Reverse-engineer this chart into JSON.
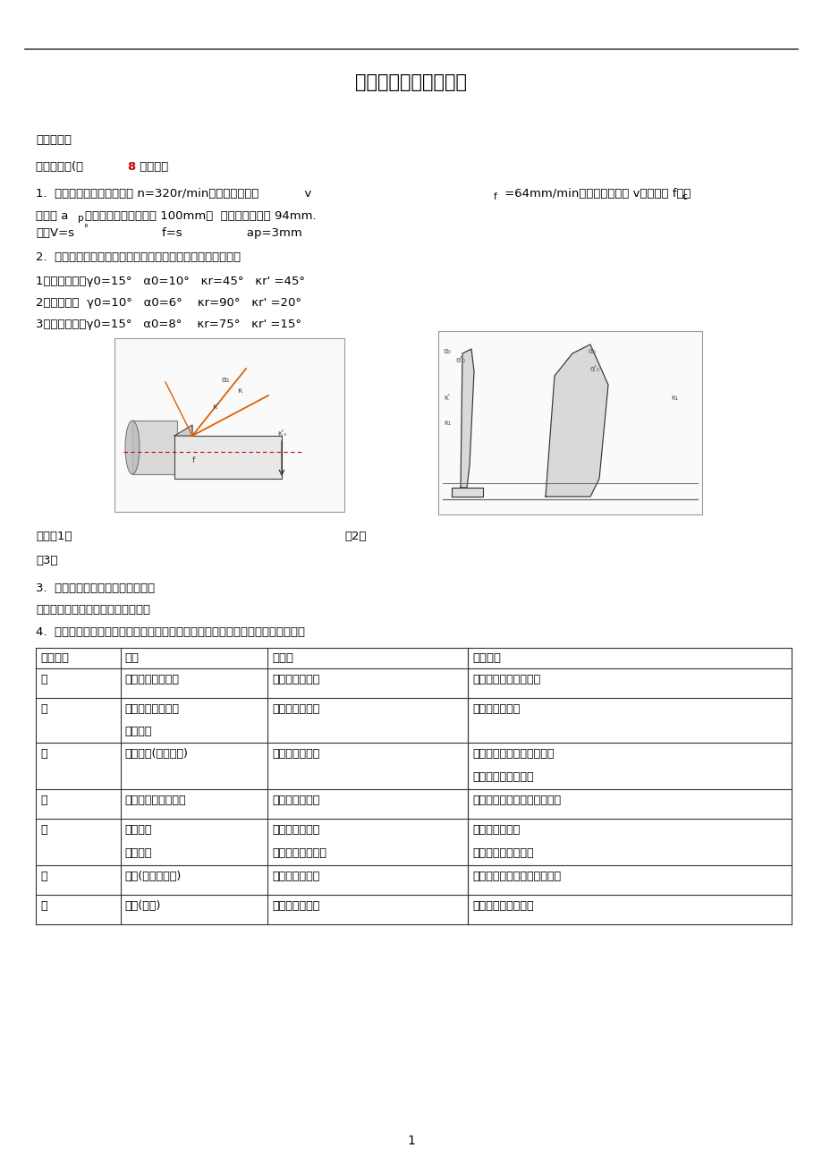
{
  "title": "机械制造基础线下作业",
  "bg_color": "#ffffff",
  "text_color": "#000000",
  "page_number": "1",
  "content": {
    "section1": "第一次作业",
    "section_header": "一、主观题(共 8 道小题）",
    "table_headers": [
      "加工方法",
      "机床",
      "主运动",
      "进给运动"
    ],
    "table_rows": [
      [
        "车",
        "卧式车床立式车床",
        "工件的旋转运动",
        "刀具的纵向或横向进给"
      ],
      [
        "钻",
        "台式钻床立式钻床\n摇臂钻床",
        "刀具的旋转运动",
        "刀具的轴向进给"
      ],
      [
        "镗",
        "卧式镗床(坐标镗床)",
        "刀具的旋转运动",
        "工作台纵向进给或横向进给\n刀具径向或轴向进给"
      ],
      [
        "铣",
        "立式铣床、卧式铣床",
        "刀具的旋转运动",
        "工作台纵向、横向和垂直进给"
      ],
      [
        "刨",
        "牛头刨床\n龙门刨床",
        "刀具的往复移动\n工作台的往复移动",
        "工作台横向进给\n刀架水平或垂直进给"
      ],
      [
        "插",
        "插床(圆形工作台)",
        "刀具的往复移动",
        "工作台纵向、横向和圆周进给"
      ],
      [
        "拉",
        "拉床(拉刀)",
        "刀具的轴向移动",
        "（靠刀具结构实现）"
      ]
    ]
  }
}
